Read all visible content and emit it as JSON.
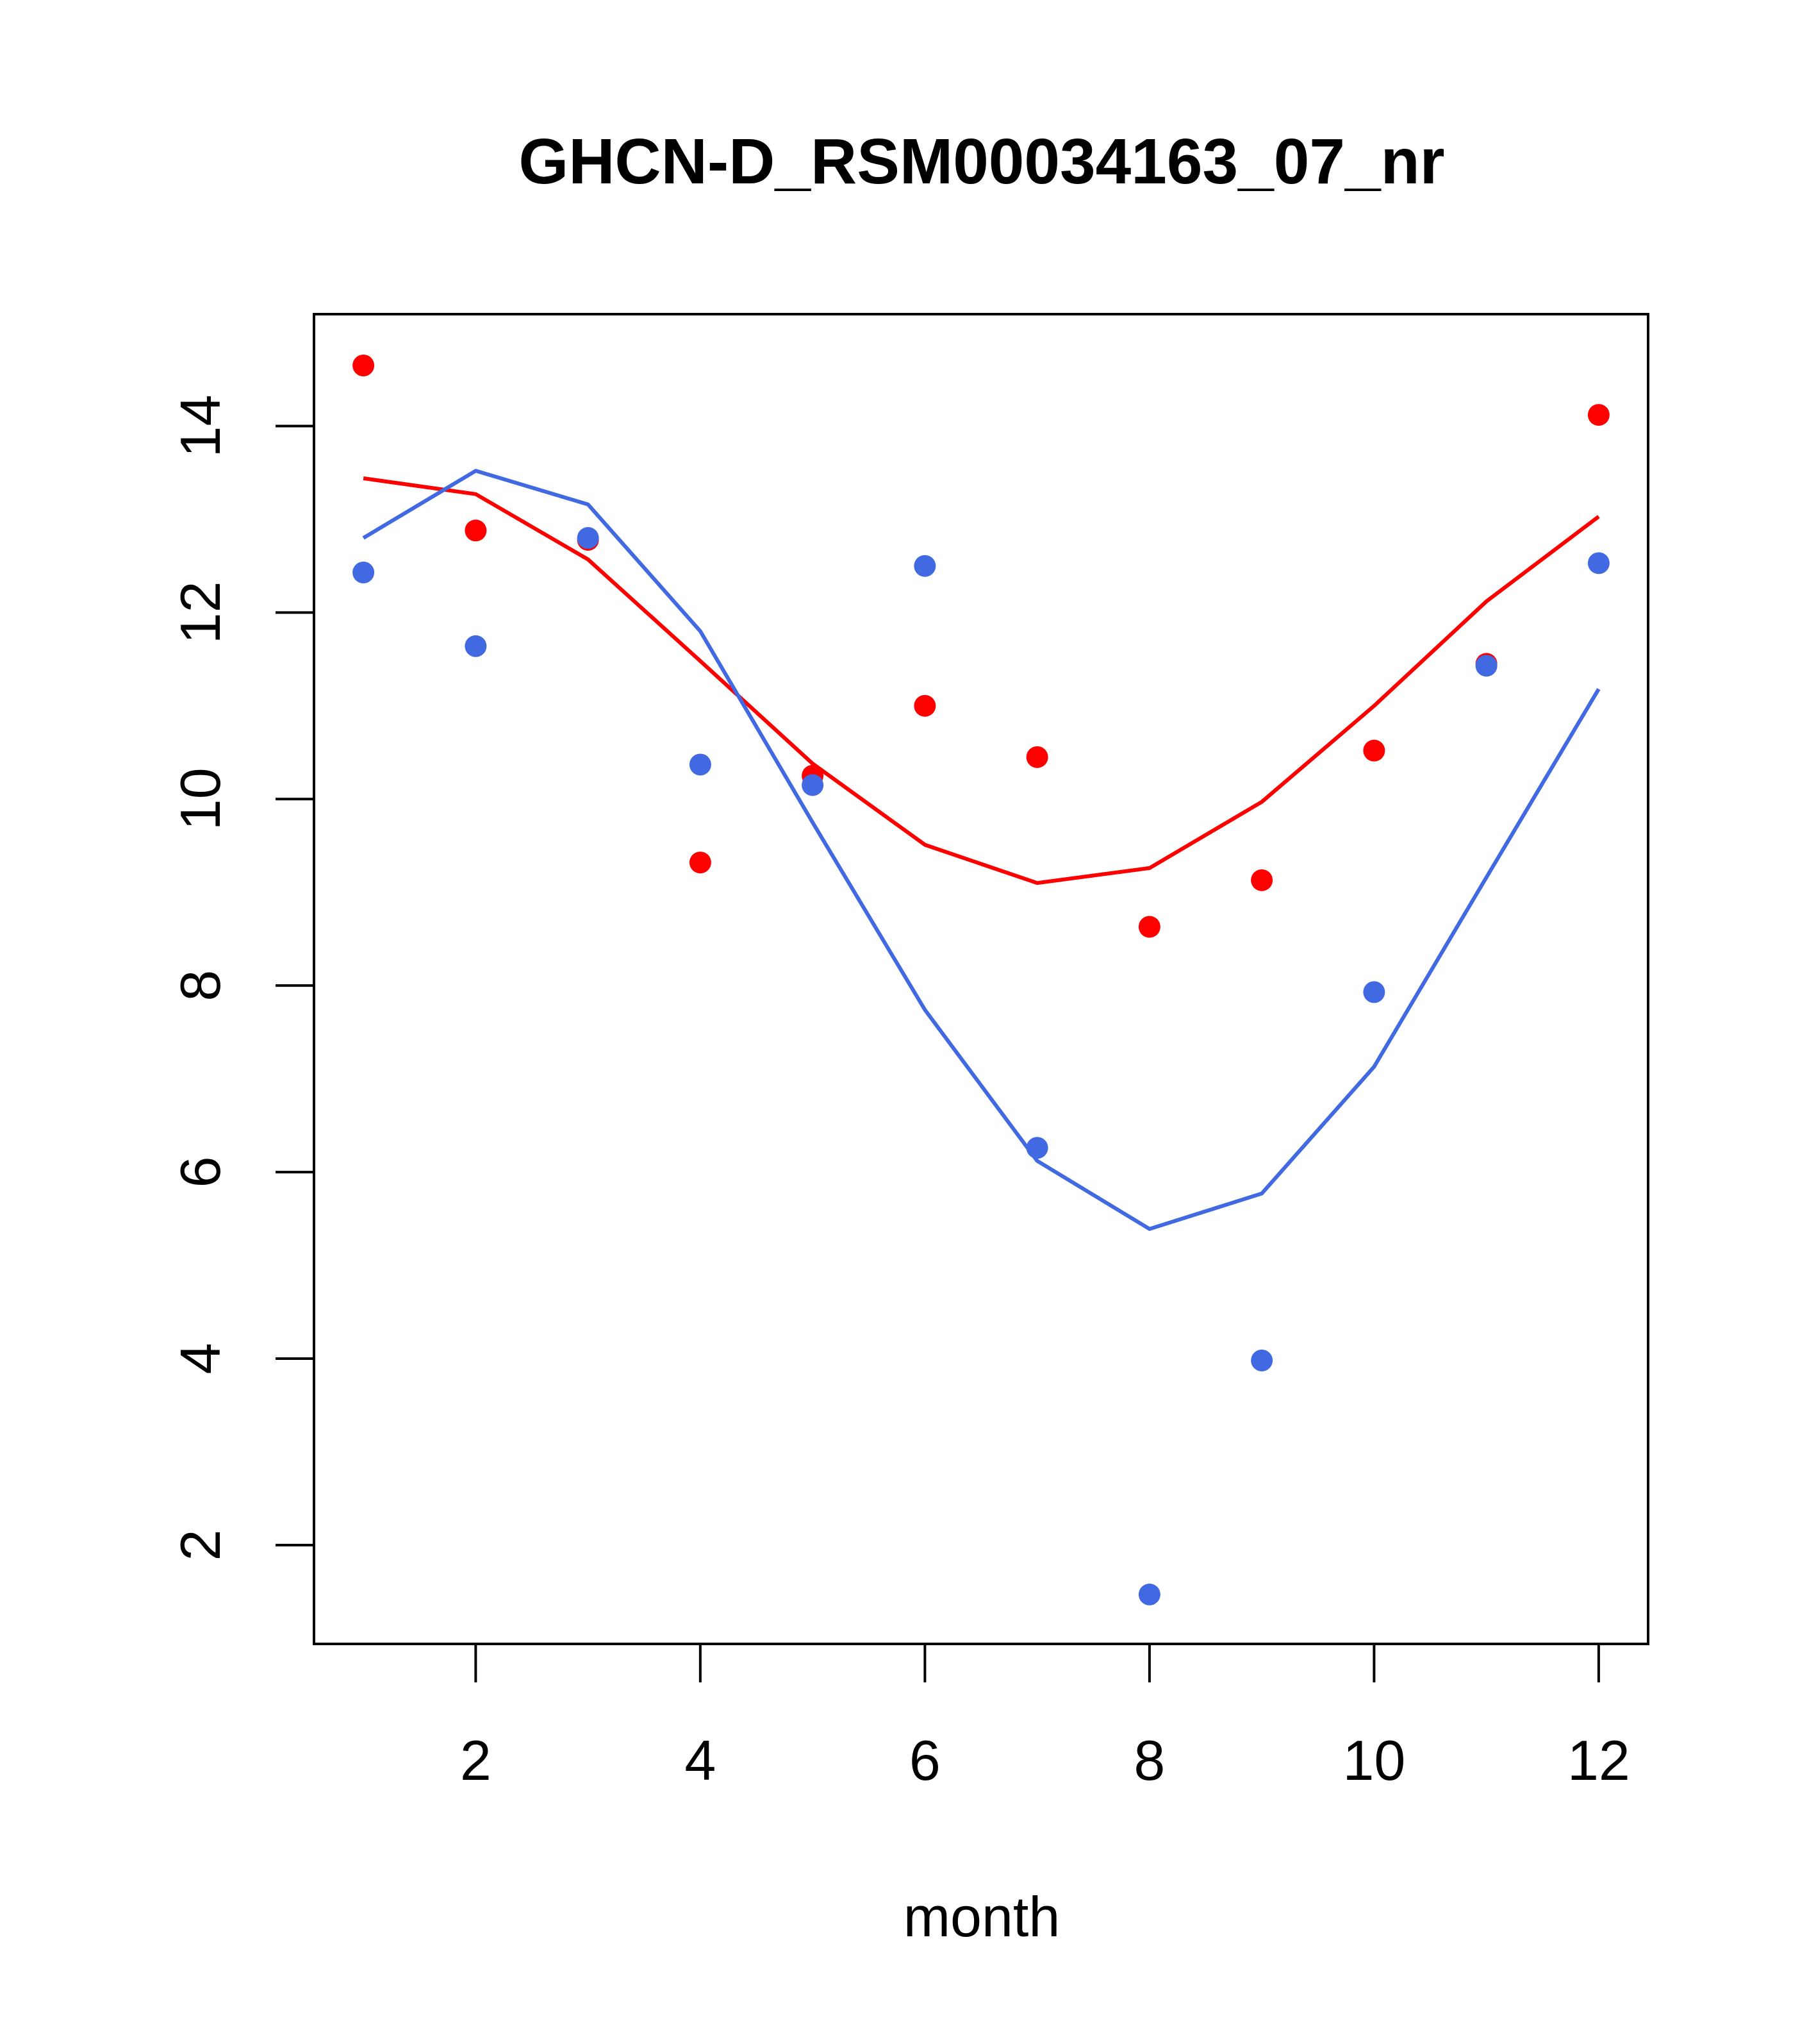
{
  "chart_data": {
    "type": "scatter",
    "title": "GHCN-D_RSM00034163_07_nr",
    "xlabel": "month",
    "ylabel": "",
    "xlim": [
      0.56,
      12.44
    ],
    "ylim": [
      0.94,
      15.2
    ],
    "x_ticks": [
      2,
      4,
      6,
      8,
      10,
      12
    ],
    "y_ticks": [
      2,
      4,
      6,
      8,
      10,
      12,
      14
    ],
    "grid": false,
    "legend": "none",
    "series": [
      {
        "color": "#ff0000",
        "x": [
          1,
          2,
          3,
          4,
          5,
          6,
          7,
          8,
          9,
          10,
          11,
          12
        ],
        "points": [
          14.65,
          12.88,
          12.78,
          9.32,
          10.25,
          11.0,
          10.45,
          8.63,
          9.13,
          10.52,
          11.45,
          14.12
        ],
        "fit": [
          13.44,
          13.27,
          12.57,
          11.48,
          10.38,
          9.51,
          9.1,
          9.26,
          9.97,
          11.0,
          12.12,
          13.03
        ]
      },
      {
        "color": "#4169e1",
        "x": [
          1,
          2,
          3,
          4,
          5,
          6,
          7,
          8,
          9,
          10,
          11,
          12
        ],
        "points": [
          12.43,
          11.64,
          12.8,
          10.37,
          10.15,
          12.5,
          6.26,
          1.47,
          3.98,
          7.93,
          11.43,
          12.53
        ],
        "fit": [
          12.8,
          13.52,
          13.16,
          11.8,
          9.75,
          7.74,
          6.12,
          5.39,
          5.77,
          7.13,
          9.16,
          11.18
        ]
      }
    ]
  }
}
